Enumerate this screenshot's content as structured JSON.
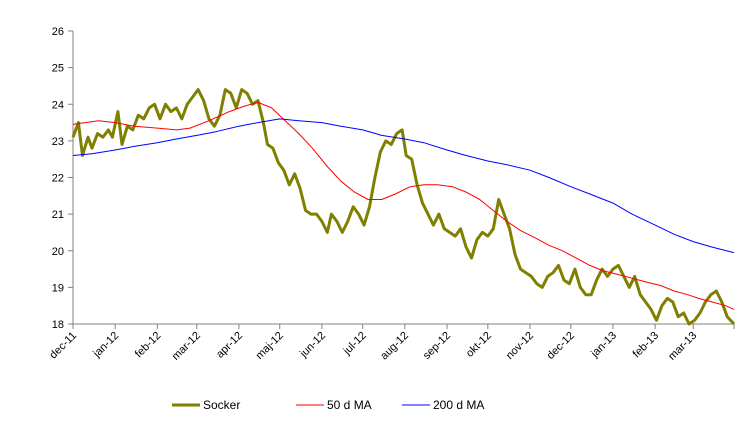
{
  "chart_data": {
    "type": "line",
    "ylim": [
      18,
      26
    ],
    "y_ticks": [
      "18",
      "19",
      "20",
      "21",
      "22",
      "23",
      "24",
      "25",
      "26"
    ],
    "x_range": [
      "2011-12-01",
      "2013-03-31"
    ],
    "x_ticks": [
      {
        "date": "2011-12-01",
        "label": "dec-11"
      },
      {
        "date": "2012-01-01",
        "label": "jan-12"
      },
      {
        "date": "2012-02-01",
        "label": "feb-12"
      },
      {
        "date": "2012-03-01",
        "label": "mar-12"
      },
      {
        "date": "2012-04-01",
        "label": "apr-12"
      },
      {
        "date": "2012-05-01",
        "label": "maj-12"
      },
      {
        "date": "2012-06-01",
        "label": "jun-12"
      },
      {
        "date": "2012-07-01",
        "label": "jul-12"
      },
      {
        "date": "2012-08-01",
        "label": "aug-12"
      },
      {
        "date": "2012-09-01",
        "label": "sep-12"
      },
      {
        "date": "2012-10-01",
        "label": "okt-12"
      },
      {
        "date": "2012-11-01",
        "label": "nov-12"
      },
      {
        "date": "2012-12-01",
        "label": "dec-12"
      },
      {
        "date": "2013-01-01",
        "label": "jan-13"
      },
      {
        "date": "2013-02-01",
        "label": "feb-13"
      },
      {
        "date": "2013-03-01",
        "label": "mar-13"
      }
    ],
    "grid": false,
    "legend_position": "bottom",
    "series": [
      {
        "name": "Socker",
        "color": "#7f7f00",
        "points": [
          [
            "2011-12-01",
            23.1
          ],
          [
            "2011-12-05",
            23.5
          ],
          [
            "2011-12-08",
            22.6
          ],
          [
            "2011-12-12",
            23.1
          ],
          [
            "2011-12-15",
            22.8
          ],
          [
            "2011-12-19",
            23.2
          ],
          [
            "2011-12-23",
            23.1
          ],
          [
            "2011-12-27",
            23.3
          ],
          [
            "2011-12-30",
            23.1
          ],
          [
            "2012-01-03",
            23.8
          ],
          [
            "2012-01-06",
            22.9
          ],
          [
            "2012-01-10",
            23.4
          ],
          [
            "2012-01-14",
            23.3
          ],
          [
            "2012-01-18",
            23.7
          ],
          [
            "2012-01-22",
            23.6
          ],
          [
            "2012-01-26",
            23.9
          ],
          [
            "2012-01-30",
            24.0
          ],
          [
            "2012-02-03",
            23.6
          ],
          [
            "2012-02-07",
            24.0
          ],
          [
            "2012-02-11",
            23.8
          ],
          [
            "2012-02-15",
            23.9
          ],
          [
            "2012-02-19",
            23.6
          ],
          [
            "2012-02-23",
            24.0
          ],
          [
            "2012-02-27",
            24.2
          ],
          [
            "2012-03-02",
            24.4
          ],
          [
            "2012-03-06",
            24.1
          ],
          [
            "2012-03-10",
            23.6
          ],
          [
            "2012-03-14",
            23.4
          ],
          [
            "2012-03-18",
            23.7
          ],
          [
            "2012-03-22",
            24.4
          ],
          [
            "2012-03-26",
            24.3
          ],
          [
            "2012-03-30",
            23.9
          ],
          [
            "2012-04-03",
            24.4
          ],
          [
            "2012-04-07",
            24.3
          ],
          [
            "2012-04-11",
            24.0
          ],
          [
            "2012-04-15",
            24.1
          ],
          [
            "2012-04-19",
            23.5
          ],
          [
            "2012-04-22",
            22.9
          ],
          [
            "2012-04-26",
            22.8
          ],
          [
            "2012-04-30",
            22.4
          ],
          [
            "2012-05-04",
            22.2
          ],
          [
            "2012-05-08",
            21.8
          ],
          [
            "2012-05-12",
            22.1
          ],
          [
            "2012-05-16",
            21.7
          ],
          [
            "2012-05-20",
            21.1
          ],
          [
            "2012-05-24",
            21.0
          ],
          [
            "2012-05-28",
            21.0
          ],
          [
            "2012-06-01",
            20.8
          ],
          [
            "2012-06-05",
            20.5
          ],
          [
            "2012-06-08",
            21.0
          ],
          [
            "2012-06-12",
            20.8
          ],
          [
            "2012-06-16",
            20.5
          ],
          [
            "2012-06-20",
            20.8
          ],
          [
            "2012-06-24",
            21.2
          ],
          [
            "2012-06-28",
            21.0
          ],
          [
            "2012-07-02",
            20.7
          ],
          [
            "2012-07-06",
            21.2
          ],
          [
            "2012-07-10",
            22.0
          ],
          [
            "2012-07-14",
            22.7
          ],
          [
            "2012-07-18",
            23.0
          ],
          [
            "2012-07-22",
            22.9
          ],
          [
            "2012-07-26",
            23.2
          ],
          [
            "2012-07-30",
            23.3
          ],
          [
            "2012-08-02",
            22.6
          ],
          [
            "2012-08-06",
            22.5
          ],
          [
            "2012-08-10",
            21.8
          ],
          [
            "2012-08-14",
            21.3
          ],
          [
            "2012-08-18",
            21.0
          ],
          [
            "2012-08-22",
            20.7
          ],
          [
            "2012-08-26",
            21.0
          ],
          [
            "2012-08-30",
            20.6
          ],
          [
            "2012-09-03",
            20.5
          ],
          [
            "2012-09-07",
            20.4
          ],
          [
            "2012-09-11",
            20.6
          ],
          [
            "2012-09-15",
            20.1
          ],
          [
            "2012-09-19",
            19.8
          ],
          [
            "2012-09-23",
            20.3
          ],
          [
            "2012-09-27",
            20.5
          ],
          [
            "2012-10-01",
            20.4
          ],
          [
            "2012-10-05",
            20.6
          ],
          [
            "2012-10-09",
            21.4
          ],
          [
            "2012-10-13",
            21.0
          ],
          [
            "2012-10-17",
            20.6
          ],
          [
            "2012-10-21",
            19.9
          ],
          [
            "2012-10-25",
            19.5
          ],
          [
            "2012-10-29",
            19.4
          ],
          [
            "2012-11-02",
            19.3
          ],
          [
            "2012-11-06",
            19.1
          ],
          [
            "2012-11-10",
            19.0
          ],
          [
            "2012-11-14",
            19.3
          ],
          [
            "2012-11-18",
            19.4
          ],
          [
            "2012-11-22",
            19.6
          ],
          [
            "2012-11-26",
            19.2
          ],
          [
            "2012-11-30",
            19.1
          ],
          [
            "2012-12-04",
            19.5
          ],
          [
            "2012-12-08",
            19.0
          ],
          [
            "2012-12-12",
            18.8
          ],
          [
            "2012-12-16",
            18.8
          ],
          [
            "2012-12-20",
            19.2
          ],
          [
            "2012-12-24",
            19.5
          ],
          [
            "2012-12-28",
            19.3
          ],
          [
            "2013-01-01",
            19.5
          ],
          [
            "2013-01-05",
            19.6
          ],
          [
            "2013-01-09",
            19.3
          ],
          [
            "2013-01-13",
            19.0
          ],
          [
            "2013-01-17",
            19.3
          ],
          [
            "2013-01-21",
            18.8
          ],
          [
            "2013-01-25",
            18.6
          ],
          [
            "2013-01-29",
            18.4
          ],
          [
            "2013-02-02",
            18.1
          ],
          [
            "2013-02-06",
            18.5
          ],
          [
            "2013-02-10",
            18.7
          ],
          [
            "2013-02-14",
            18.6
          ],
          [
            "2013-02-18",
            18.2
          ],
          [
            "2013-02-22",
            18.3
          ],
          [
            "2013-02-26",
            18.0
          ],
          [
            "2013-03-02",
            18.1
          ],
          [
            "2013-03-06",
            18.3
          ],
          [
            "2013-03-10",
            18.6
          ],
          [
            "2013-03-14",
            18.8
          ],
          [
            "2013-03-18",
            18.9
          ],
          [
            "2013-03-22",
            18.6
          ],
          [
            "2013-03-26",
            18.2
          ],
          [
            "2013-03-31",
            18.0
          ]
        ]
      },
      {
        "name": "50 d MA",
        "color": "#ff0000",
        "points": [
          [
            "2011-12-01",
            23.45
          ],
          [
            "2011-12-10",
            23.5
          ],
          [
            "2011-12-20",
            23.55
          ],
          [
            "2012-01-01",
            23.5
          ],
          [
            "2012-01-15",
            23.4
          ],
          [
            "2012-02-01",
            23.35
          ],
          [
            "2012-02-15",
            23.3
          ],
          [
            "2012-02-25",
            23.35
          ],
          [
            "2012-03-10",
            23.55
          ],
          [
            "2012-03-25",
            23.8
          ],
          [
            "2012-04-05",
            23.95
          ],
          [
            "2012-04-15",
            24.05
          ],
          [
            "2012-04-25",
            23.9
          ],
          [
            "2012-05-05",
            23.55
          ],
          [
            "2012-05-15",
            23.2
          ],
          [
            "2012-05-25",
            22.8
          ],
          [
            "2012-06-05",
            22.3
          ],
          [
            "2012-06-15",
            21.9
          ],
          [
            "2012-06-25",
            21.6
          ],
          [
            "2012-07-05",
            21.4
          ],
          [
            "2012-07-15",
            21.4
          ],
          [
            "2012-07-25",
            21.55
          ],
          [
            "2012-08-05",
            21.75
          ],
          [
            "2012-08-15",
            21.8
          ],
          [
            "2012-08-25",
            21.8
          ],
          [
            "2012-09-05",
            21.75
          ],
          [
            "2012-09-15",
            21.6
          ],
          [
            "2012-09-25",
            21.4
          ],
          [
            "2012-10-05",
            21.1
          ],
          [
            "2012-10-15",
            20.8
          ],
          [
            "2012-10-25",
            20.55
          ],
          [
            "2012-11-05",
            20.35
          ],
          [
            "2012-11-15",
            20.15
          ],
          [
            "2012-11-25",
            20.0
          ],
          [
            "2012-12-05",
            19.8
          ],
          [
            "2012-12-15",
            19.6
          ],
          [
            "2012-12-25",
            19.45
          ],
          [
            "2013-01-05",
            19.35
          ],
          [
            "2013-01-15",
            19.25
          ],
          [
            "2013-01-25",
            19.15
          ],
          [
            "2013-02-05",
            19.05
          ],
          [
            "2013-02-15",
            18.9
          ],
          [
            "2013-02-25",
            18.8
          ],
          [
            "2013-03-05",
            18.7
          ],
          [
            "2013-03-15",
            18.6
          ],
          [
            "2013-03-25",
            18.5
          ],
          [
            "2013-03-31",
            18.4
          ]
        ]
      },
      {
        "name": "200 d MA",
        "color": "#0000ff",
        "points": [
          [
            "2011-12-01",
            22.6
          ],
          [
            "2011-12-15",
            22.65
          ],
          [
            "2012-01-01",
            22.75
          ],
          [
            "2012-01-15",
            22.85
          ],
          [
            "2012-02-01",
            22.95
          ],
          [
            "2012-02-15",
            23.05
          ],
          [
            "2012-03-01",
            23.15
          ],
          [
            "2012-03-15",
            23.25
          ],
          [
            "2012-04-01",
            23.4
          ],
          [
            "2012-04-15",
            23.5
          ],
          [
            "2012-05-01",
            23.6
          ],
          [
            "2012-05-15",
            23.55
          ],
          [
            "2012-06-01",
            23.5
          ],
          [
            "2012-06-15",
            23.4
          ],
          [
            "2012-07-01",
            23.3
          ],
          [
            "2012-07-15",
            23.15
          ],
          [
            "2012-08-01",
            23.05
          ],
          [
            "2012-08-15",
            22.95
          ],
          [
            "2012-09-01",
            22.75
          ],
          [
            "2012-09-15",
            22.6
          ],
          [
            "2012-10-01",
            22.45
          ],
          [
            "2012-10-15",
            22.35
          ],
          [
            "2012-11-01",
            22.2
          ],
          [
            "2012-11-15",
            22.0
          ],
          [
            "2012-12-01",
            21.75
          ],
          [
            "2012-12-15",
            21.55
          ],
          [
            "2013-01-01",
            21.3
          ],
          [
            "2013-01-15",
            21.0
          ],
          [
            "2013-02-01",
            20.7
          ],
          [
            "2013-02-15",
            20.45
          ],
          [
            "2013-03-01",
            20.25
          ],
          [
            "2013-03-15",
            20.1
          ],
          [
            "2013-03-31",
            19.95
          ]
        ]
      }
    ]
  }
}
